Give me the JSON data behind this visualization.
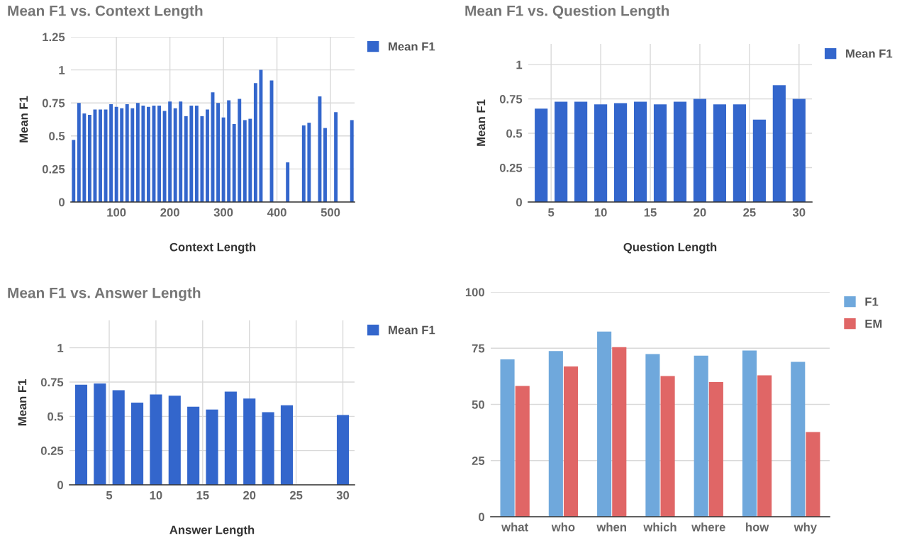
{
  "chart_data": [
    {
      "type": "bar",
      "title": "Mean F1 vs. Context Length",
      "xlabel": "Context Length",
      "ylabel": "Mean F1",
      "x": [
        20,
        30,
        40,
        50,
        60,
        70,
        80,
        90,
        100,
        110,
        120,
        130,
        140,
        150,
        160,
        170,
        180,
        190,
        200,
        210,
        220,
        230,
        240,
        250,
        260,
        270,
        280,
        290,
        300,
        310,
        320,
        330,
        340,
        350,
        360,
        370,
        390,
        420,
        450,
        460,
        480,
        490,
        510,
        540
      ],
      "series": [
        {
          "name": "Mean F1",
          "color": "#3366cc",
          "values": [
            0.47,
            0.75,
            0.67,
            0.66,
            0.7,
            0.7,
            0.7,
            0.74,
            0.72,
            0.71,
            0.74,
            0.71,
            0.75,
            0.73,
            0.72,
            0.73,
            0.73,
            0.69,
            0.76,
            0.71,
            0.76,
            0.65,
            0.73,
            0.73,
            0.65,
            0.7,
            0.83,
            0.75,
            0.64,
            0.77,
            0.59,
            0.78,
            0.62,
            0.63,
            0.9,
            1.0,
            0.92,
            0.3,
            0.58,
            0.6,
            0.8,
            0.56,
            0.68,
            0.62
          ]
        }
      ],
      "xlim": [
        15,
        545
      ],
      "xticks": [
        100,
        200,
        300,
        400,
        500
      ],
      "ylim": [
        0,
        1.25
      ],
      "yticks": [
        0,
        0.25,
        0.5,
        0.75,
        1,
        1.25
      ],
      "grid": true,
      "legend": "top right"
    },
    {
      "type": "bar",
      "title": "Mean F1 vs. Question Length",
      "xlabel": "Question Length",
      "ylabel": "Mean F1",
      "x": [
        4,
        6,
        8,
        10,
        12,
        14,
        16,
        18,
        20,
        22,
        24,
        26,
        28,
        30
      ],
      "series": [
        {
          "name": "Mean F1",
          "color": "#3366cc",
          "values": [
            0.68,
            0.73,
            0.73,
            0.71,
            0.72,
            0.73,
            0.71,
            0.73,
            0.75,
            0.71,
            0.71,
            0.6,
            0.85,
            0.75
          ]
        }
      ],
      "xlim": [
        2.7,
        31.3
      ],
      "xticks": [
        5,
        10,
        15,
        20,
        25,
        30
      ],
      "ylim": [
        0,
        1.15
      ],
      "yticks": [
        0,
        0.25,
        0.5,
        0.75,
        1
      ],
      "grid": true,
      "legend": "top right"
    },
    {
      "type": "bar",
      "title": "Mean F1 vs. Answer Length",
      "xlabel": "Answer Length",
      "ylabel": "Mean F1",
      "x": [
        2,
        4,
        6,
        8,
        10,
        12,
        14,
        16,
        18,
        20,
        22,
        24,
        30
      ],
      "series": [
        {
          "name": "Mean F1",
          "color": "#3366cc",
          "values": [
            0.73,
            0.74,
            0.69,
            0.6,
            0.66,
            0.65,
            0.57,
            0.55,
            0.68,
            0.63,
            0.53,
            0.58,
            0.51
          ]
        }
      ],
      "xlim": [
        0.75,
        31.25
      ],
      "xticks": [
        5,
        10,
        15,
        20,
        25,
        30
      ],
      "ylim": [
        0,
        1.2
      ],
      "yticks": [
        0,
        0.25,
        0.5,
        0.75,
        1
      ],
      "grid": true,
      "legend": "top right"
    },
    {
      "type": "bar",
      "categories": [
        "what",
        "who",
        "when",
        "which",
        "where",
        "how",
        "why"
      ],
      "series": [
        {
          "name": "F1",
          "color": "#6fa8dc",
          "values": [
            70.0,
            73.7,
            82.4,
            72.4,
            71.7,
            74.0,
            68.9
          ]
        },
        {
          "name": "EM",
          "color": "#e06666",
          "values": [
            58.2,
            66.9,
            75.5,
            62.6,
            59.9,
            62.9,
            37.7
          ]
        }
      ],
      "ylim": [
        0,
        100
      ],
      "yticks": [
        0,
        25,
        50,
        75,
        100
      ],
      "grid": "y",
      "legend": "top right"
    }
  ]
}
